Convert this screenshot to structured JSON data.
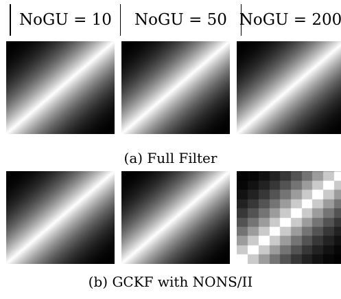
{
  "headers": [
    "NoGU = 10",
    "NoGU = 50",
    "NoGU = 200"
  ],
  "rows": [
    {
      "caption": "(a) Full Filter",
      "images": [
        {
          "type": "smooth"
        },
        {
          "type": "smooth"
        },
        {
          "type": "smooth"
        }
      ]
    },
    {
      "caption": "(b) GCKF with NONS/II",
      "images": [
        {
          "type": "smooth"
        },
        {
          "type": "smooth"
        },
        {
          "type": "blocky",
          "blocks": 10
        }
      ]
    }
  ]
}
